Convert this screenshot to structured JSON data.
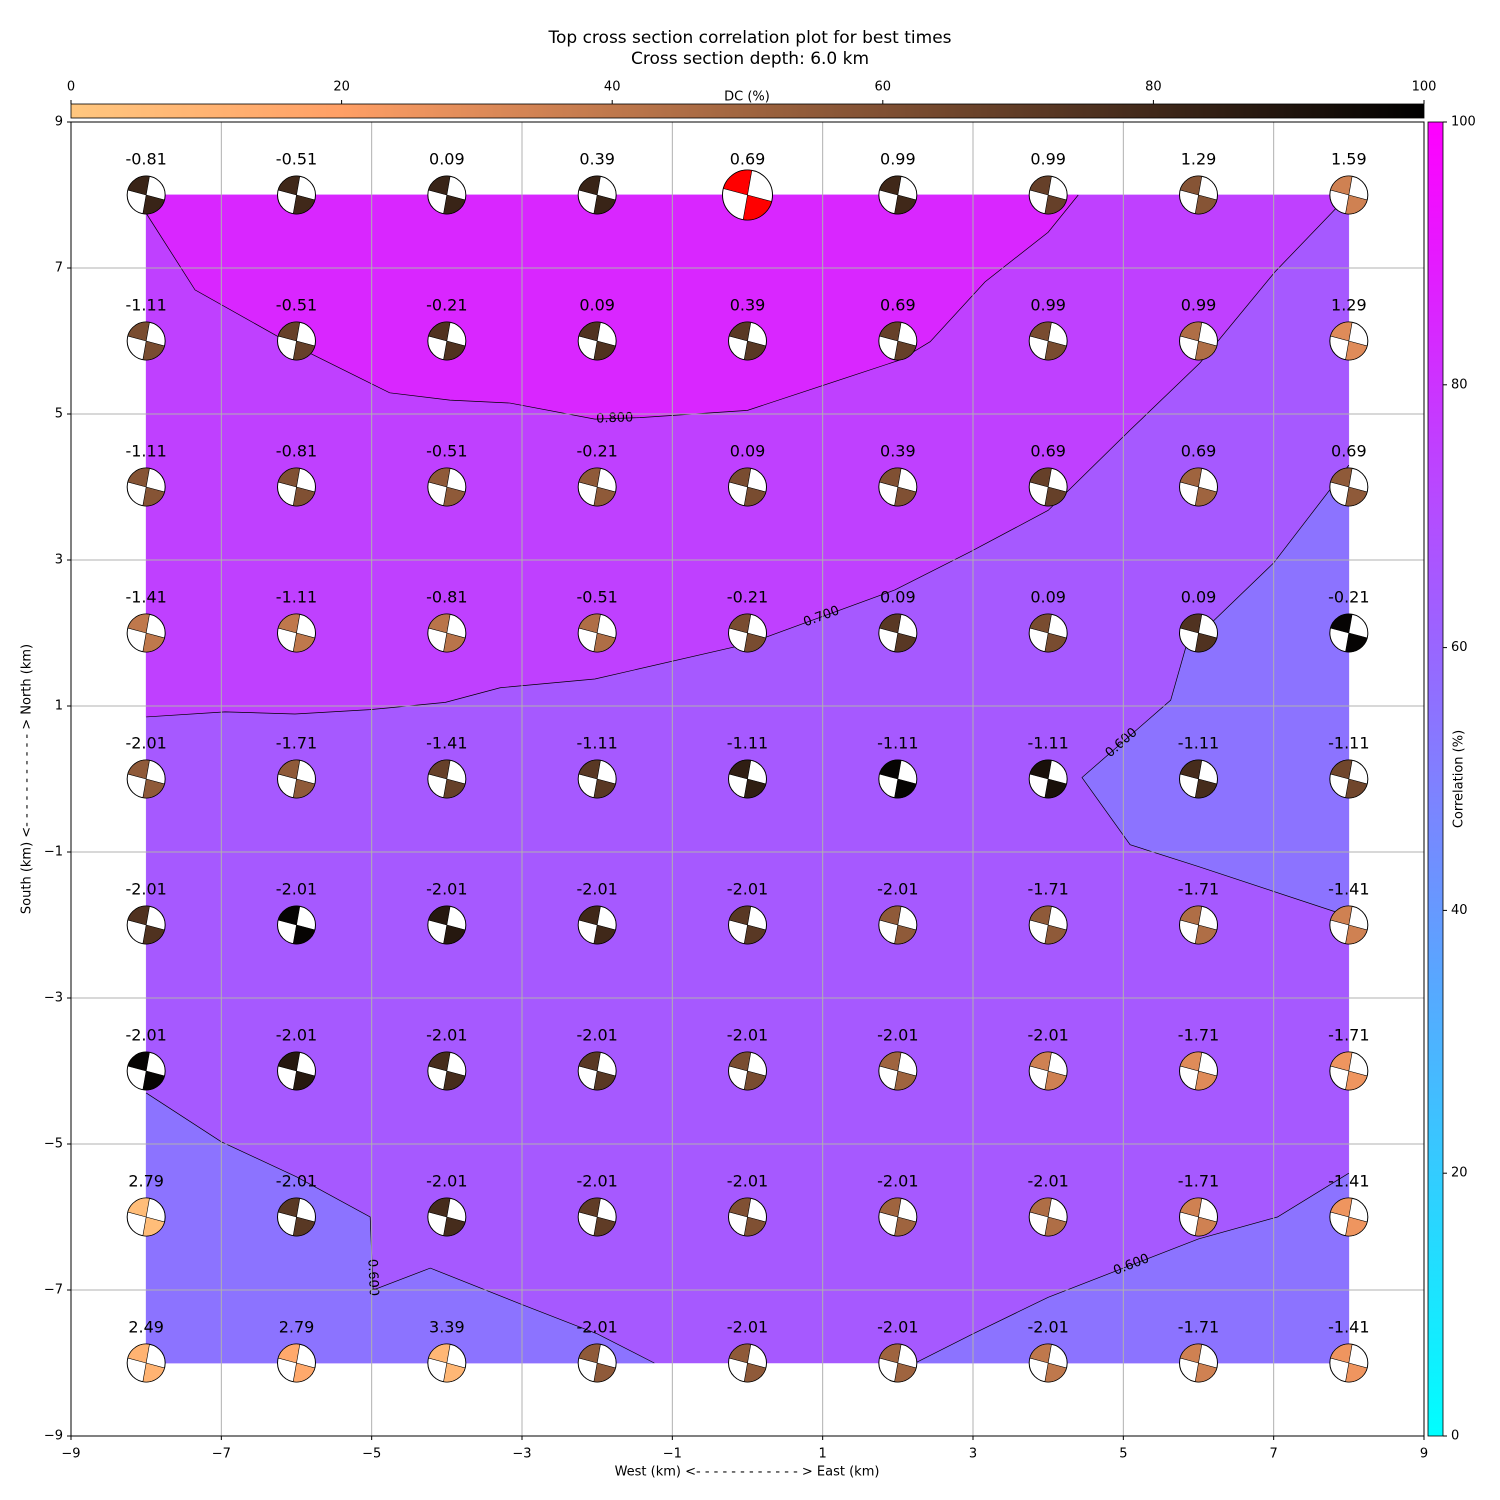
{
  "chart_data": {
    "type": "contour",
    "title": "Top cross section correlation plot for best times",
    "subtitle": "Cross section depth: 6.0 km",
    "x_label": "West (km) <- - - - - - - - - - - - > East (km)",
    "y_label": "South (km) <- - - - - - - - - - - > North (km)",
    "xlim": [
      -9,
      9
    ],
    "ylim": [
      -9,
      9
    ],
    "xticks": [
      {
        "value": -9,
        "label": "−9"
      },
      {
        "value": -7,
        "label": "−7"
      },
      {
        "value": -5,
        "label": "−5"
      },
      {
        "value": -3,
        "label": "−3"
      },
      {
        "value": -1,
        "label": "−1"
      },
      1,
      3,
      5,
      7,
      9
    ],
    "yticks": [
      {
        "value": -9,
        "label": "−9"
      },
      {
        "value": -7,
        "label": "−7"
      },
      {
        "value": -5,
        "label": "−5"
      },
      {
        "value": -3,
        "label": "−3"
      },
      {
        "value": -1,
        "label": "−1"
      },
      1,
      3,
      5,
      7,
      9
    ],
    "grid": true,
    "x": [
      -8,
      -6,
      -4,
      -2,
      0,
      2,
      4,
      6,
      8
    ],
    "y": [
      8,
      6,
      4,
      2,
      0,
      -2,
      -4,
      -6,
      -8
    ],
    "time": [
      [
        -0.81,
        -0.51,
        0.09,
        0.39,
        0.69,
        0.99,
        0.99,
        1.29,
        1.59
      ],
      [
        -1.11,
        -0.51,
        -0.21,
        0.09,
        0.39,
        0.69,
        0.99,
        0.99,
        1.29
      ],
      [
        -1.11,
        -0.81,
        -0.51,
        -0.21,
        0.09,
        0.39,
        0.69,
        0.69,
        0.69
      ],
      [
        -1.41,
        -1.11,
        -0.81,
        -0.51,
        -0.21,
        0.09,
        0.09,
        0.09,
        -0.21
      ],
      [
        -2.01,
        -1.71,
        -1.41,
        -1.11,
        -1.11,
        -1.11,
        -1.11,
        -1.11,
        -1.11
      ],
      [
        -2.01,
        -2.01,
        -2.01,
        -2.01,
        -2.01,
        -2.01,
        -1.71,
        -1.71,
        -1.41
      ],
      [
        -2.01,
        -2.01,
        -2.01,
        -2.01,
        -2.01,
        -2.01,
        -2.01,
        -1.71,
        -1.71
      ],
      [
        2.79,
        -2.01,
        -2.01,
        -2.01,
        -2.01,
        -2.01,
        -2.01,
        -1.71,
        -1.41
      ],
      [
        2.49,
        2.79,
        3.39,
        -2.01,
        -2.01,
        -2.01,
        -2.01,
        -1.71,
        -1.41
      ]
    ],
    "dc": [
      [
        82,
        80,
        82,
        82,
        80,
        80,
        68,
        58,
        35
      ],
      [
        62,
        68,
        75,
        75,
        72,
        68,
        62,
        45,
        30
      ],
      [
        58,
        60,
        55,
        55,
        62,
        60,
        68,
        50,
        55
      ],
      [
        40,
        40,
        42,
        45,
        62,
        72,
        62,
        75,
        98
      ],
      [
        55,
        55,
        68,
        72,
        85,
        98,
        92,
        78,
        65
      ],
      [
        75,
        98,
        88,
        80,
        72,
        55,
        55,
        45,
        35
      ],
      [
        98,
        88,
        78,
        72,
        62,
        50,
        35,
        30,
        25
      ],
      [
        5,
        72,
        78,
        70,
        60,
        50,
        45,
        35,
        25
      ],
      [
        10,
        15,
        8,
        55,
        55,
        50,
        40,
        35,
        25
      ]
    ],
    "best": {
      "x": 0,
      "y": 8,
      "color": "#ff0000"
    },
    "fills": [
      {
        "color": "#a659ff",
        "x": [
          -8,
          8,
          8,
          -8
        ],
        "y": [
          -8,
          -8,
          8,
          8
        ]
      },
      {
        "color": "#bf40ff",
        "x": [
          -8,
          -6.95,
          -6.02,
          -5.02,
          -4.02,
          -3.29,
          -2.03,
          0,
          1.96,
          2.96,
          4,
          5.09,
          6.02,
          7.02,
          8,
          -8
        ],
        "y": [
          0.85,
          0.92,
          0.89,
          0.95,
          1.05,
          1.25,
          1.37,
          1.85,
          2.59,
          3.11,
          3.68,
          4.78,
          5.7,
          6.95,
          8,
          8
        ]
      },
      {
        "color": "#d926ff",
        "x": [
          -8,
          -7.35,
          -6.09,
          -4.76,
          -3.96,
          -3.16,
          -2.03,
          -1.43,
          0,
          2.03,
          2.43,
          3.16,
          4,
          4.4,
          -8
        ],
        "y": [
          7.75,
          6.7,
          5.97,
          5.29,
          5.19,
          5.15,
          4.93,
          4.95,
          5.05,
          5.74,
          5.99,
          6.81,
          7.49,
          8,
          8
        ]
      },
      {
        "color": "#8c73ff",
        "x": [
          8,
          7,
          5.83,
          5.63,
          4.45,
          5.09,
          6,
          8
        ],
        "y": [
          4.3,
          2.96,
          1.8,
          1.08,
          0.02,
          -0.9,
          -1.2,
          -1.88
        ]
      },
      {
        "color": "#8c73ff",
        "x": [
          -8,
          -7,
          -6,
          -5.02,
          -4.98,
          -4.22,
          -3,
          -2,
          -1.24,
          -8
        ],
        "y": [
          -4.3,
          -4.97,
          -5.45,
          -6,
          -7,
          -6.7,
          -7.2,
          -7.6,
          -8,
          -8
        ]
      },
      {
        "color": "#8c73ff",
        "x": [
          2.23,
          3,
          4,
          5,
          6,
          7.05,
          8,
          8
        ],
        "y": [
          -8,
          -7.6,
          -7.1,
          -6.7,
          -6.3,
          -6,
          -5.4,
          -8
        ]
      }
    ],
    "contours": [
      {
        "level": {
          "value": 0.8,
          "label": "0.800"
        },
        "pieces": [
          {
            "x": [
              -8,
              -7.35,
              -6.09,
              -4.76,
              -3.96,
              -3.16,
              -2.03,
              -1.43,
              0,
              2.03,
              2.43,
              3.16,
              4,
              4.4
            ],
            "y": [
              7.75,
              6.7,
              5.97,
              5.29,
              5.19,
              5.15,
              4.93,
              4.95,
              5.05,
              5.74,
              5.99,
              6.81,
              7.49,
              8
            ]
          }
        ]
      },
      {
        "level": {
          "value": 0.7,
          "label": "0.700"
        },
        "pieces": [
          {
            "x": [
              -8,
              -6.95,
              -6.02,
              -5.02,
              -4.02,
              -3.29,
              -2.03,
              0,
              1.96,
              2.96,
              4,
              5.09,
              6.02,
              7.02,
              8
            ],
            "y": [
              0.85,
              0.92,
              0.89,
              0.95,
              1.05,
              1.25,
              1.37,
              1.85,
              2.59,
              3.11,
              3.68,
              4.78,
              5.7,
              6.95,
              8
            ]
          }
        ]
      },
      {
        "level": {
          "value": 0.6,
          "label": "0.600"
        },
        "pieces": [
          {
            "x": [
              8,
              7,
              5.83,
              5.63,
              4.45,
              5.09,
              6,
              8
            ],
            "y": [
              4.3,
              2.96,
              1.8,
              1.08,
              0.02,
              -0.9,
              -1.2,
              -1.88
            ]
          },
          {
            "x": [
              -8,
              -7,
              -6,
              -5.02,
              -4.98,
              -4.22,
              -3,
              -2,
              -1.24
            ],
            "y": [
              -4.3,
              -4.97,
              -5.45,
              -6,
              -7,
              -6.7,
              -7.2,
              -7.6,
              -8
            ]
          },
          {
            "x": [
              2.23,
              3,
              4,
              5,
              6,
              7.05,
              8
            ],
            "y": [
              -8,
              -7.6,
              -7.1,
              -6.7,
              -6.3,
              -6,
              -5.4
            ]
          }
        ]
      }
    ],
    "colorbar": {
      "label": "Correlation (%)",
      "lim": [
        0,
        100
      ],
      "ticks": [
        0,
        20,
        40,
        60,
        80,
        100
      ],
      "colormap": "cool"
    },
    "dc_colorbar": {
      "label": "DC (%)",
      "lim": [
        0,
        100
      ],
      "ticks": [
        0,
        20,
        40,
        60,
        80,
        100
      ],
      "colormap": "copper_r"
    }
  }
}
